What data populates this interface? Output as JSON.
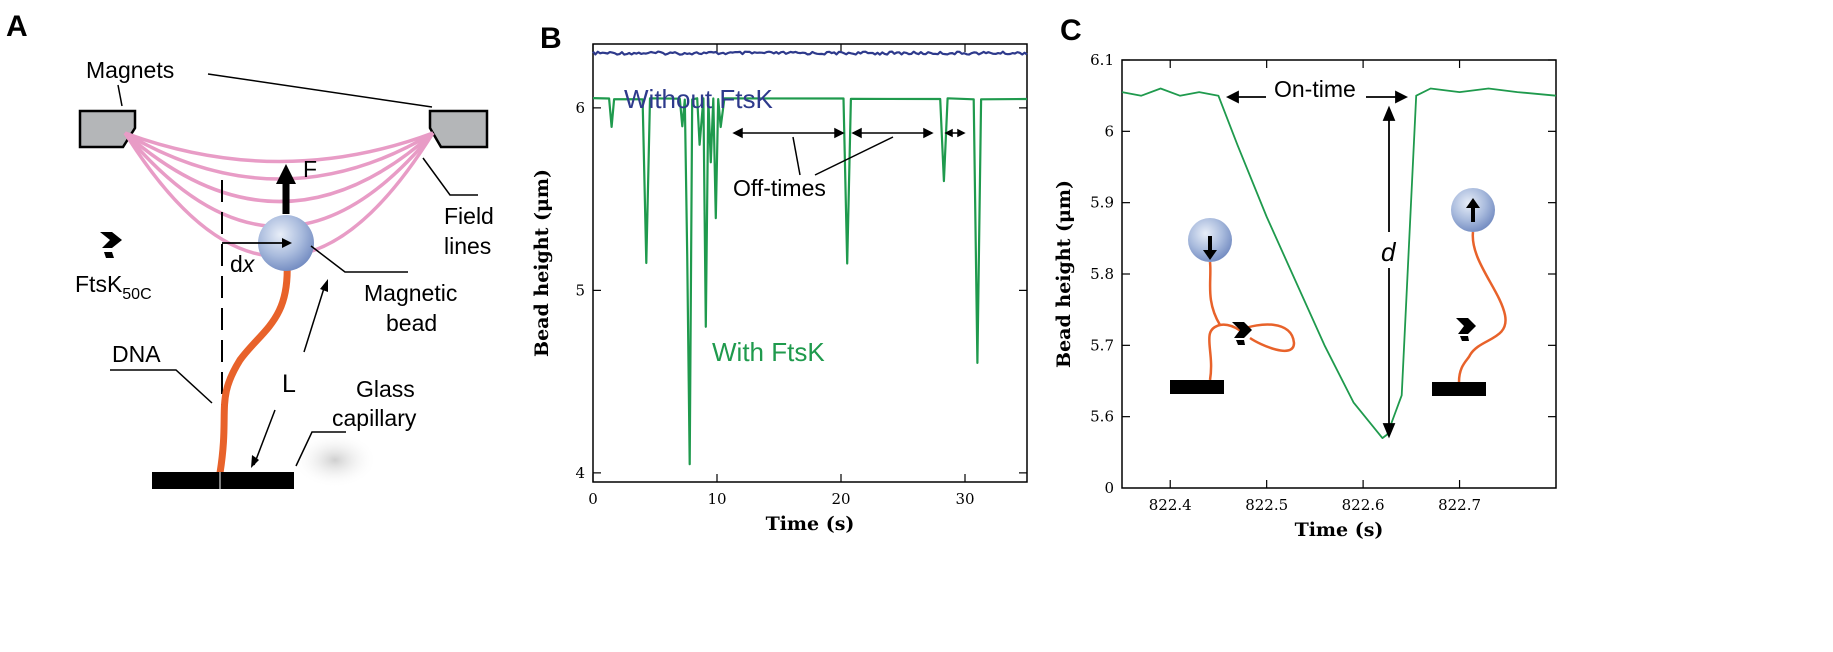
{
  "panels": {
    "A": {
      "letter": "A",
      "labels": {
        "magnets": "Magnets",
        "force": "F",
        "field_lines_1": "Field",
        "field_lines_2": "lines",
        "dx_d": "d",
        "dx_x": "x",
        "ftsk": "FtsK",
        "ftsk_sub": "50C",
        "magnetic_bead_1": "Magnetic",
        "magnetic_bead_2": "bead",
        "dna": "DNA",
        "length": "L",
        "glass_capillary_1": "Glass",
        "glass_capillary_2": "capillary"
      },
      "colors": {
        "magnet": "#b4b6b8",
        "field_lines": "#e89cc6",
        "dna": "#e8622a",
        "bead": "#9fb2d8"
      }
    },
    "B": {
      "letter": "B",
      "labels": {
        "without": "Without FtsK",
        "with": "With FtsK",
        "off_times": "Off-times"
      },
      "chart_data": {
        "type": "line",
        "xlabel": "Time (s)",
        "ylabel": "Bead height (μm)",
        "xlim": [
          0,
          35
        ],
        "ylim": [
          3.95,
          6.35
        ],
        "xticks": [
          0,
          10,
          20,
          30
        ],
        "yticks": [
          4,
          5,
          6
        ],
        "series": [
          {
            "name": "Without FtsK",
            "color": "#2e3a8c",
            "x": [
              0,
              35
            ],
            "y": [
              6.3,
              6.3
            ]
          },
          {
            "name": "With FtsK",
            "color": "#1f9a4d",
            "x": [
              0,
              1.3,
              1.5,
              1.7,
              4.0,
              4.3,
              4.6,
              7.0,
              7.2,
              7.4,
              7.6,
              7.8,
              8.0,
              8.4,
              8.6,
              8.9,
              9.1,
              9.3,
              9.5,
              9.7,
              9.9,
              10.1,
              10.3,
              10.6,
              20.2,
              20.5,
              20.8,
              28.0,
              28.3,
              28.6,
              30.7,
              31.0,
              31.3,
              35
            ],
            "y": [
              6.05,
              6.05,
              5.9,
              6.05,
              6.05,
              5.15,
              6.05,
              6.05,
              5.9,
              6.05,
              5.2,
              4.05,
              6.05,
              6.05,
              5.8,
              6.05,
              4.8,
              6.05,
              5.7,
              6.05,
              5.4,
              6.05,
              5.9,
              6.05,
              6.05,
              5.15,
              6.05,
              6.05,
              5.6,
              6.05,
              6.05,
              4.6,
              6.05,
              6.05
            ]
          }
        ]
      }
    },
    "C": {
      "letter": "C",
      "labels": {
        "on_time": "On-time",
        "d": "d"
      },
      "chart_data": {
        "type": "line",
        "xlabel": "Time (s)",
        "ylabel": "Bead height (μm)",
        "xlim": [
          822.35,
          822.8
        ],
        "ylim": [
          5.5,
          6.1
        ],
        "xticks": [
          822.4,
          822.5,
          822.6,
          822.7
        ],
        "yticks": [
          5.6,
          5.7,
          5.8,
          5.9,
          6,
          6.1
        ],
        "ytick_labels": [
          "5.6",
          "5.7",
          "5.8",
          "5.9",
          "6",
          "6.1"
        ],
        "ytick_zero_label": "0",
        "series": [
          {
            "color": "#1f9a4d",
            "x": [
              822.35,
              822.37,
              822.39,
              822.41,
              822.43,
              822.45,
              822.47,
              822.5,
              822.53,
              822.56,
              822.59,
              822.62,
              822.625,
              822.64,
              822.655,
              822.67,
              822.7,
              822.73,
              822.76,
              822.8
            ],
            "y": [
              6.055,
              6.05,
              6.06,
              6.05,
              6.055,
              6.05,
              5.98,
              5.88,
              5.79,
              5.7,
              5.62,
              5.57,
              5.575,
              5.63,
              6.05,
              6.06,
              6.055,
              6.06,
              6.055,
              6.05
            ]
          }
        ]
      }
    }
  }
}
